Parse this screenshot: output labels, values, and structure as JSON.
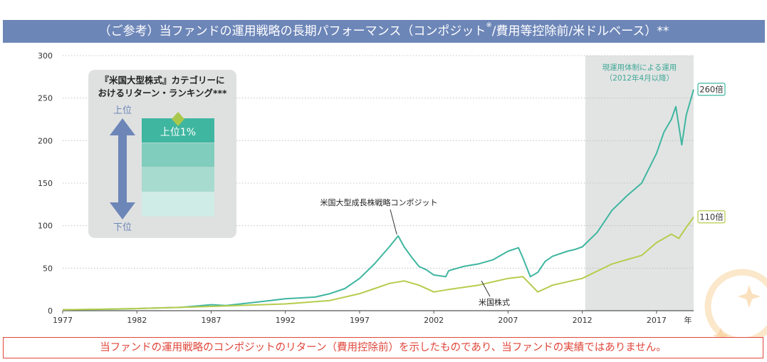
{
  "header": {
    "title_main": "（ご参考）当ファンドの運用戦略の長期パフォーマンス（コンポジット",
    "title_mark": "※",
    "title_tail": "/費用等控除前/米ドルベース）**"
  },
  "footer": {
    "note": "当ファンドの運用戦略のコンポジットのリターン（費用控除前）を示したものであり、当ファンドの実績ではありません。"
  },
  "inset": {
    "title_line1": "『米国大型株式』カテゴリーに",
    "title_line2": "おけるリターン・ランキング***",
    "top_label": "上位",
    "bottom_label": "下位",
    "band_label": "上位1%"
  },
  "colors": {
    "composite": "#3fb6a0",
    "us_equity": "#b6cc4c",
    "shade": "#e2e4e4",
    "header_bg": "#6d86b8",
    "arrow": "#6d86b8",
    "diamond": "#a9c84b",
    "footer": "#e0463a"
  },
  "chart_data": {
    "type": "line",
    "xlabel": "年",
    "ylabel": "",
    "xlim": [
      1977,
      2019.5
    ],
    "ylim": [
      0,
      300
    ],
    "x_ticks": [
      1977,
      1982,
      1987,
      1992,
      1997,
      2002,
      2007,
      2012,
      2017
    ],
    "y_ticks": [
      0,
      50,
      100,
      150,
      200,
      250,
      300
    ],
    "shaded_period": {
      "start": 2012.2,
      "end": 2019.5,
      "label_line1": "現運用体制による運用",
      "label_line2": "（2012年4月以降）"
    },
    "series": [
      {
        "name": "米国大型成長株戦略コンポジット",
        "end_label": "260倍",
        "x": [
          1977,
          1979,
          1981,
          1983,
          1985,
          1987,
          1988,
          1990,
          1992,
          1994,
          1995,
          1996,
          1997,
          1998,
          1999,
          1999.6,
          2000,
          2000.5,
          2001,
          2001.5,
          2002,
          2002.8,
          2003,
          2004,
          2005,
          2006,
          2007,
          2007.7,
          2008,
          2008.5,
          2009,
          2009.5,
          2010,
          2011,
          2011.5,
          2012,
          2013,
          2014,
          2015,
          2016,
          2017,
          2017.5,
          2018,
          2018.3,
          2018.7,
          2019,
          2019.5
        ],
        "values": [
          1,
          1.5,
          2,
          3,
          4,
          7,
          6,
          10,
          14,
          16,
          20,
          26,
          38,
          55,
          75,
          88,
          75,
          63,
          52,
          48,
          42,
          40,
          47,
          52,
          55,
          60,
          70,
          74,
          62,
          40,
          45,
          58,
          64,
          70,
          72,
          75,
          92,
          118,
          135,
          150,
          185,
          210,
          225,
          240,
          195,
          230,
          260
        ]
      },
      {
        "name": "米国株式",
        "end_label": "110倍",
        "x": [
          1977,
          1982,
          1987,
          1992,
          1995,
          1997,
          1998,
          1999,
          2000,
          2001,
          2002,
          2003,
          2005,
          2007,
          2008,
          2009,
          2010,
          2012,
          2014,
          2016,
          2017,
          2018,
          2018.5,
          2019,
          2019.5
        ],
        "values": [
          1,
          2.5,
          5,
          8,
          12,
          20,
          26,
          32,
          35,
          30,
          22,
          25,
          30,
          38,
          40,
          22,
          30,
          38,
          55,
          65,
          80,
          90,
          85,
          98,
          110
        ]
      }
    ]
  }
}
